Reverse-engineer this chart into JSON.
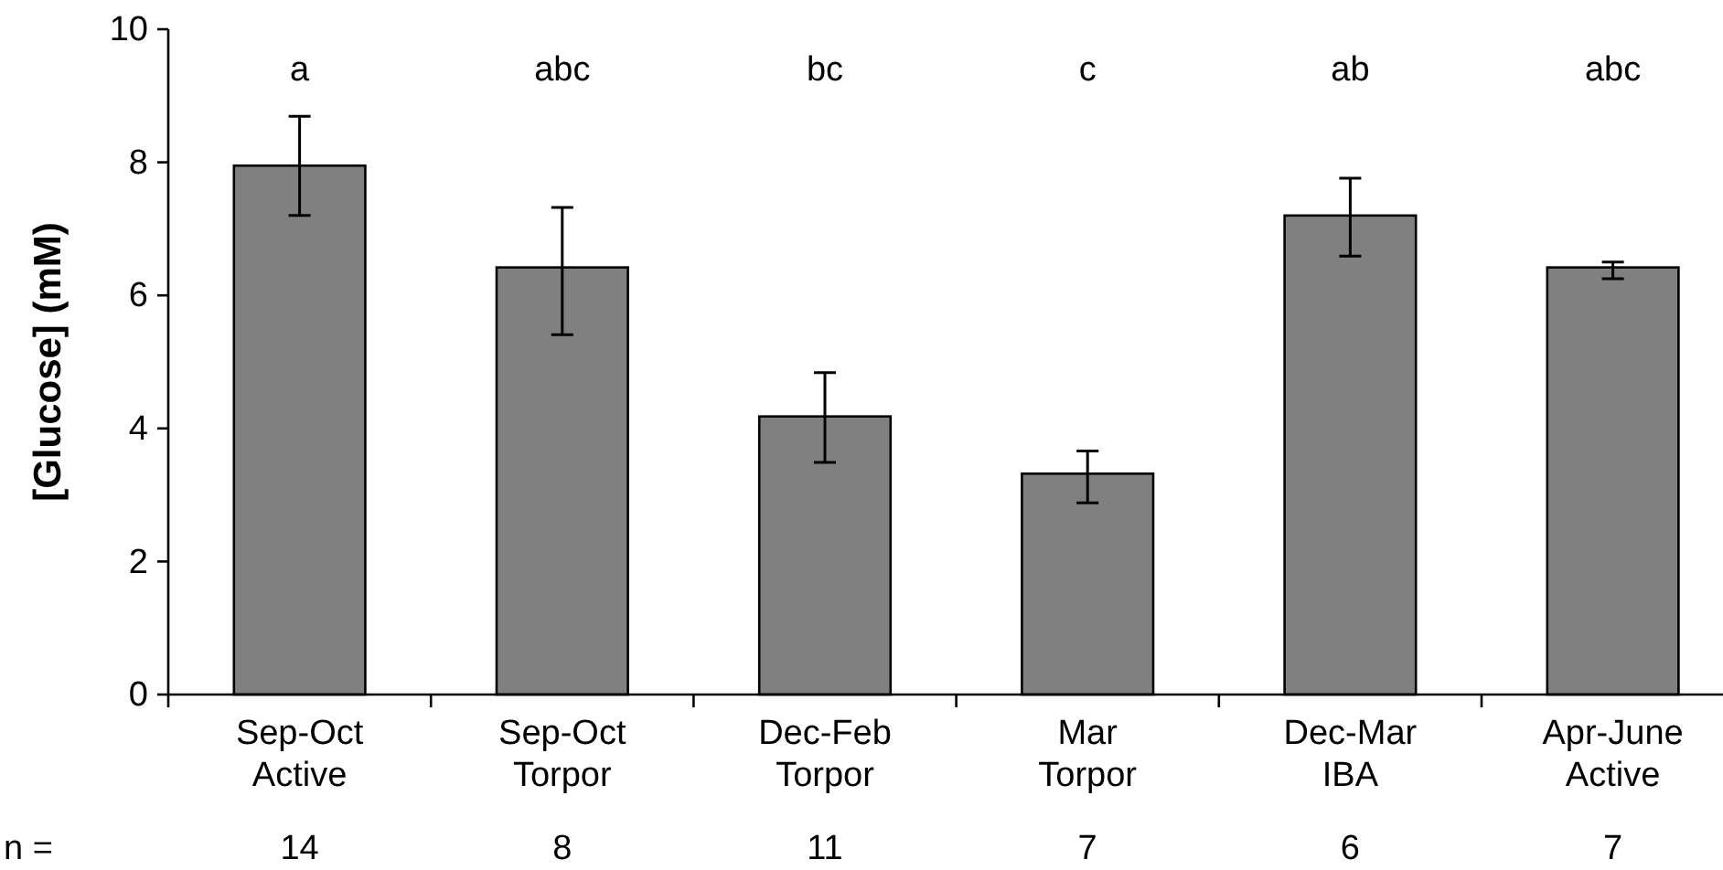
{
  "chart_data": {
    "type": "bar",
    "ylabel": "[Glucose] (mM)",
    "categories": [
      "Sep-Oct Active",
      "Sep-Oct Torpor",
      "Dec-Feb Torpor",
      "Mar Torpor",
      "Dec-Mar IBA",
      "Apr-June Active"
    ],
    "values": [
      7.95,
      6.42,
      4.18,
      3.32,
      7.2,
      6.42
    ],
    "errors": [
      [
        7.2,
        8.69
      ],
      [
        5.41,
        7.32
      ],
      [
        3.49,
        4.84
      ],
      [
        2.88,
        3.66
      ],
      [
        6.59,
        7.76
      ],
      [
        6.25,
        6.5
      ]
    ],
    "color": "#808080",
    "ylim": [
      0,
      10
    ],
    "yticks": [
      0,
      2,
      4,
      6,
      8,
      10
    ],
    "grid": false,
    "annotations": [
      "a",
      "abc",
      "bc",
      "c",
      "ab",
      "abc",
      "n =",
      "14",
      "8",
      "11",
      "7",
      "6",
      "7"
    ]
  }
}
